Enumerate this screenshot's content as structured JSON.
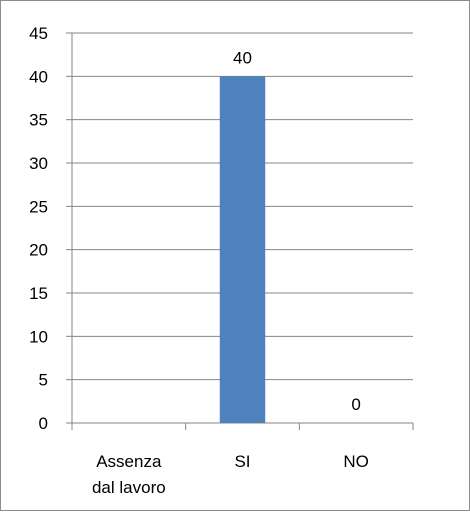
{
  "chart_data": {
    "type": "bar",
    "categories": [
      "Assenza\ndal lavoro",
      "SI",
      "NO"
    ],
    "values": [
      null,
      40,
      0
    ],
    "data_labels": [
      "",
      "40",
      "0"
    ],
    "ylim": [
      0,
      45
    ],
    "yticks": [
      0,
      5,
      10,
      15,
      20,
      25,
      30,
      35,
      40,
      45
    ],
    "grid": true,
    "bar_color": "#4f81bd",
    "grid_color": "#868686"
  }
}
